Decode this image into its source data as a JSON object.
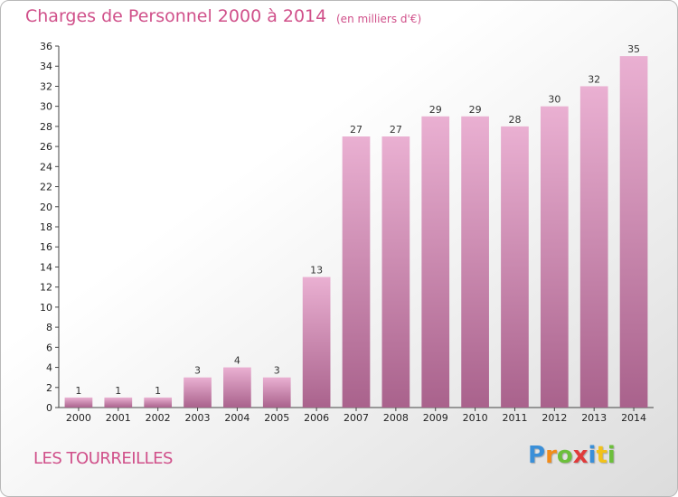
{
  "colors": {
    "title": "#d0508a",
    "bar_light": "#eab0d2",
    "bar_dark": "#a9628c",
    "axis": "#444444"
  },
  "header": {
    "title": "Charges de Personnel 2000 à 2014",
    "subtitle": "(en milliers d'€)"
  },
  "footer": {
    "commune": "LES TOURREILLES",
    "brand": [
      "P",
      "r",
      "o",
      "x",
      "i",
      "t",
      "i"
    ],
    "brand_colors": [
      "#3a8fd8",
      "#f28c1a",
      "#6cbf3b",
      "#e03a3a",
      "#3a8fd8",
      "#f2c21a",
      "#6cbf3b"
    ]
  },
  "chart_data": {
    "type": "bar",
    "title": "Charges de Personnel 2000 à 2014",
    "subtitle": "(en milliers d'€)",
    "categories": [
      "2000",
      "2001",
      "2002",
      "2003",
      "2004",
      "2005",
      "2006",
      "2007",
      "2008",
      "2009",
      "2010",
      "2011",
      "2012",
      "2013",
      "2014"
    ],
    "values": [
      1,
      1,
      1,
      3,
      4,
      3,
      13,
      27,
      27,
      29,
      29,
      28,
      30,
      32,
      35
    ],
    "ylim": [
      0,
      36
    ],
    "yticks": [
      0,
      2,
      4,
      6,
      8,
      10,
      12,
      14,
      16,
      18,
      20,
      22,
      24,
      26,
      28,
      30,
      32,
      34,
      36
    ],
    "grid": false,
    "legend": "none"
  }
}
